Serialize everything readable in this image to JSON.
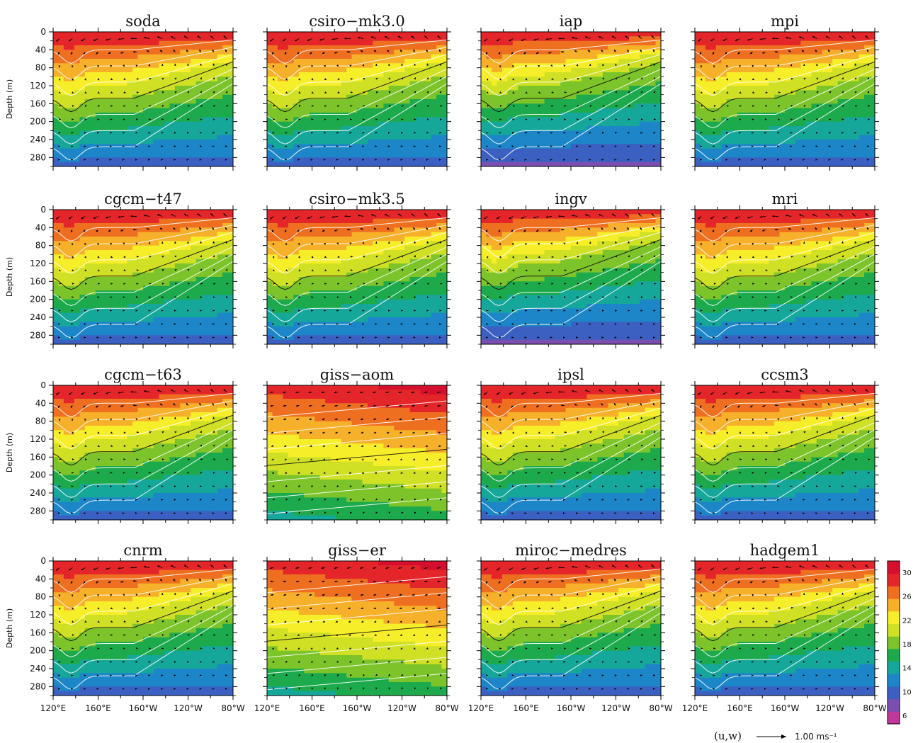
{
  "chart_data": {
    "type": "heatmap",
    "panels": [
      {
        "name": "soda",
        "variant": 0
      },
      {
        "name": "csiro−mk3.0",
        "variant": 1
      },
      {
        "name": "iap",
        "variant": 2
      },
      {
        "name": "mpi",
        "variant": 1
      },
      {
        "name": "cgcm−t47",
        "variant": 1
      },
      {
        "name": "csiro−mk3.5",
        "variant": 1
      },
      {
        "name": "ingv",
        "variant": 2
      },
      {
        "name": "mri",
        "variant": 0
      },
      {
        "name": "cgcm−t63",
        "variant": 1
      },
      {
        "name": "giss−aom",
        "variant": 3
      },
      {
        "name": "ipsl",
        "variant": 1
      },
      {
        "name": "ccsm3",
        "variant": 1
      },
      {
        "name": "cnrm",
        "variant": 0
      },
      {
        "name": "giss−er",
        "variant": 3
      },
      {
        "name": "miroc−medres",
        "variant": 1
      },
      {
        "name": "hadgem1",
        "variant": 0
      }
    ],
    "x_ticks": [
      "120°E",
      "160°E",
      "160°W",
      "120°W",
      "80°W"
    ],
    "x_range": [
      120,
      280
    ],
    "y_ticks": [
      "0",
      "40",
      "80",
      "120",
      "160",
      "200",
      "240",
      "280"
    ],
    "y_range": [
      0,
      300
    ],
    "ylabel": "Depth (m)",
    "colorbar": {
      "ticks": [
        "30",
        "26",
        "22",
        "18",
        "14",
        "10",
        "6"
      ],
      "levels": [
        6,
        8,
        10,
        12,
        14,
        16,
        18,
        20,
        22,
        24,
        26,
        28,
        30
      ],
      "colors": [
        "#c0389a",
        "#7a4fb0",
        "#3b60c2",
        "#1c86c8",
        "#16a79b",
        "#1daa4c",
        "#7cc42a",
        "#cfe025",
        "#f7ee2a",
        "#f7b02a",
        "#ef6f20",
        "#e4262a",
        "#d5102e"
      ]
    },
    "vector_legend": {
      "label": "(u,w)",
      "ref_text": "1.00 ms⁻¹"
    }
  }
}
